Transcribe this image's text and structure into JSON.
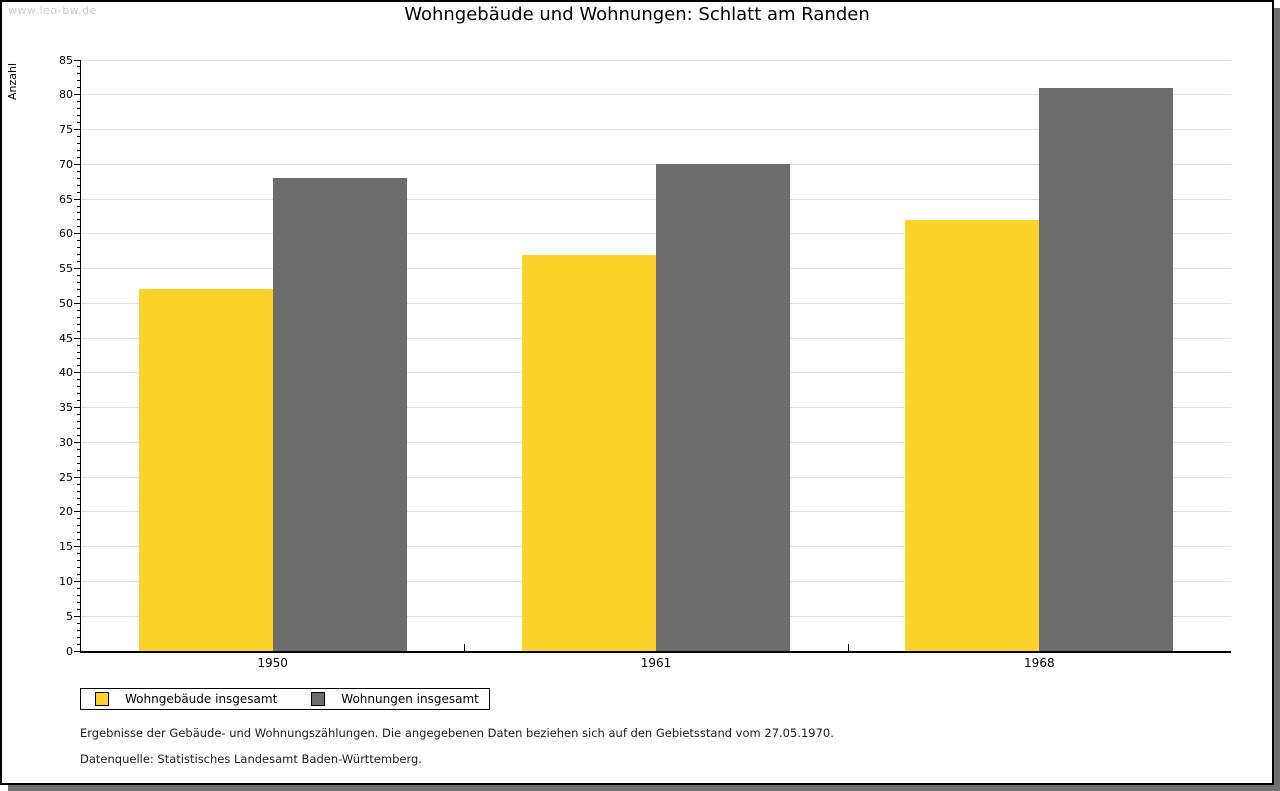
{
  "watermark": "www.leo-bw.de",
  "title": "Wohngebäude und Wohnungen: Schlatt am Randen",
  "chart_data": {
    "type": "bar",
    "title": "Wohngebäude und Wohnungen: Schlatt am Randen",
    "xlabel": "",
    "ylabel": "Anzahl",
    "categories": [
      "1950",
      "1961",
      "1968"
    ],
    "series": [
      {
        "name": "Wohngebäude insgesamt",
        "color": "#fbd32b",
        "values": [
          52,
          57,
          62
        ]
      },
      {
        "name": "Wohnungen insgesamt",
        "color": "#6c6c6c",
        "values": [
          68,
          70,
          81
        ]
      }
    ],
    "ylim": [
      0,
      85
    ],
    "ytick_step": 5,
    "minor_tick_step": 1,
    "grid": "horizontal",
    "gridline_color": "#e0e0e0",
    "legend_position": "bottom-left"
  },
  "footer": {
    "line1": "Ergebnisse der Gebäude- und Wohnungszählungen. Die angegebenen Daten beziehen sich auf den Gebietsstand vom 27.05.1970.",
    "line2": "Datenquelle: Statistisches Landesamt Baden-Württemberg."
  },
  "style": {
    "watermark_color": "#cbcbcb",
    "shadow_color": "#707070",
    "axis_color": "#000000"
  }
}
